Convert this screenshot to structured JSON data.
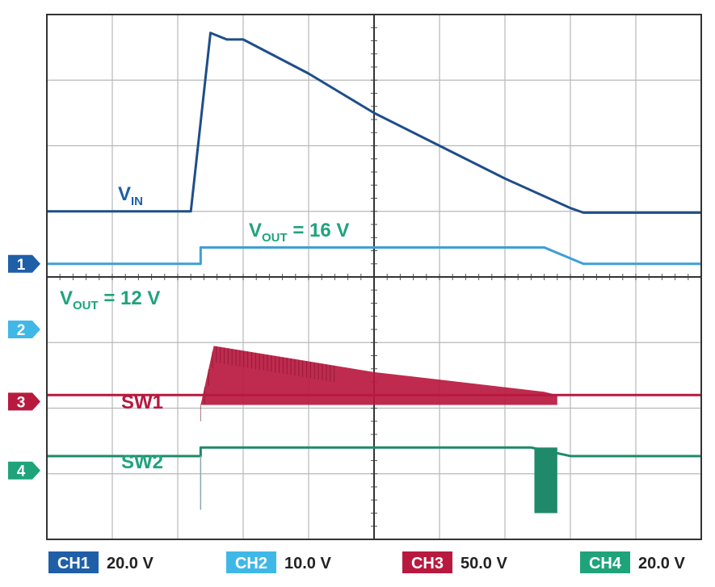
{
  "chart_data": {
    "type": "line",
    "x_range": [
      0,
      10
    ],
    "x_divisions": 10,
    "y_range": [
      0,
      8
    ],
    "y_divisions": 8,
    "grid": true,
    "grid_color": "#b8b8b8",
    "series": [
      {
        "name": "VIN",
        "color": "#1f4e89",
        "points": [
          [
            0,
            5
          ],
          [
            2.2,
            5
          ],
          [
            2.5,
            7.72
          ],
          [
            2.75,
            7.62
          ],
          [
            3.0,
            7.62
          ],
          [
            4.0,
            7.1
          ],
          [
            5.0,
            6.5
          ],
          [
            6.0,
            6.0
          ],
          [
            7.0,
            5.5
          ],
          [
            8.0,
            5.05
          ],
          [
            8.2,
            4.98
          ],
          [
            10,
            4.98
          ]
        ]
      },
      {
        "name": "VOUT",
        "color": "#3f9fd6",
        "points": [
          [
            0,
            4.2
          ],
          [
            2.35,
            4.2
          ],
          [
            2.35,
            4.45
          ],
          [
            7.6,
            4.45
          ],
          [
            8.2,
            4.2
          ],
          [
            10,
            4.2
          ]
        ]
      },
      {
        "name": "SW1",
        "color": "#b8193f",
        "baseline": 2.2,
        "envelope": [
          [
            2.35,
            2.05
          ],
          [
            2.55,
            2.95
          ],
          [
            5.0,
            2.55
          ],
          [
            7.6,
            2.25
          ],
          [
            7.8,
            2.2
          ]
        ],
        "points": [
          [
            0,
            2.2
          ],
          [
            10,
            2.2
          ]
        ]
      },
      {
        "name": "SW2",
        "color": "#1f8a6a",
        "points": [
          [
            0,
            1.27
          ],
          [
            2.35,
            1.27
          ],
          [
            2.35,
            1.4
          ],
          [
            7.4,
            1.4
          ],
          [
            8.0,
            1.27
          ],
          [
            10,
            1.27
          ]
        ]
      }
    ],
    "annotations": [
      {
        "text": "V",
        "sub": "IN",
        "color": "#1f5fa8"
      },
      {
        "text": "V",
        "sub": "OUT",
        "suffix": " = 16 V",
        "color": "#1fa37a"
      },
      {
        "text": "V",
        "sub": "OUT",
        "suffix": " = 12 V",
        "color": "#1fa37a"
      },
      {
        "text": "SW1",
        "color": "#b8193f"
      },
      {
        "text": "SW2",
        "color": "#1fa37a"
      }
    ],
    "channel_markers": [
      {
        "label": "1",
        "color": "#1f5fa8",
        "level": 4.2
      },
      {
        "label": "2",
        "color": "#3fb8e8",
        "level": 3.2
      },
      {
        "label": "3",
        "color": "#b8193f",
        "level": 2.1
      },
      {
        "label": "4",
        "color": "#1fa37a",
        "level": 1.05
      }
    ],
    "channel_scales": [
      {
        "channel": "CH1",
        "scale": "20.0 V",
        "color": "#1f5fa8"
      },
      {
        "channel": "CH2",
        "scale": "10.0 V",
        "color": "#3fb8e8"
      },
      {
        "channel": "CH3",
        "scale": "50.0 V",
        "color": "#b8193f"
      },
      {
        "channel": "CH4",
        "scale": "20.0 V",
        "color": "#1fa37a"
      }
    ]
  }
}
